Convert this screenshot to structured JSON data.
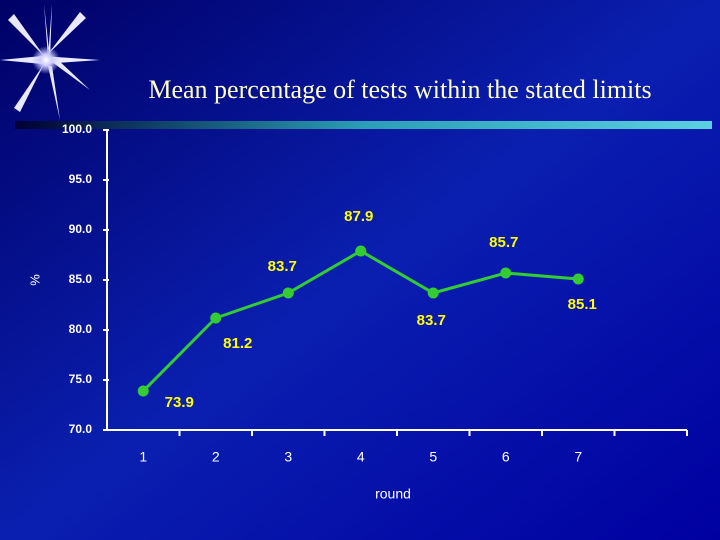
{
  "chart_data": {
    "type": "line",
    "title": "Mean percentage of tests within the stated limits",
    "x_label": "round",
    "y_label": "%",
    "categories": [
      "1",
      "2",
      "3",
      "4",
      "5",
      "6",
      "7"
    ],
    "series": [
      {
        "name": "mean percentage",
        "color": "#33cc33",
        "values": [
          73.9,
          81.2,
          83.7,
          87.9,
          83.7,
          85.7,
          85.1
        ]
      }
    ],
    "ylim": [
      70,
      100
    ],
    "yticks": [
      {
        "value": 70,
        "label": "70.0"
      },
      {
        "value": 75,
        "label": "75.0"
      },
      {
        "value": 80,
        "label": "80.0"
      },
      {
        "value": 85,
        "label": "85.0"
      },
      {
        "value": 90,
        "label": "90.0"
      },
      {
        "value": 95,
        "label": "95.0"
      },
      {
        "value": 100,
        "label": "100.0"
      }
    ],
    "label_color": "#ffff00"
  }
}
